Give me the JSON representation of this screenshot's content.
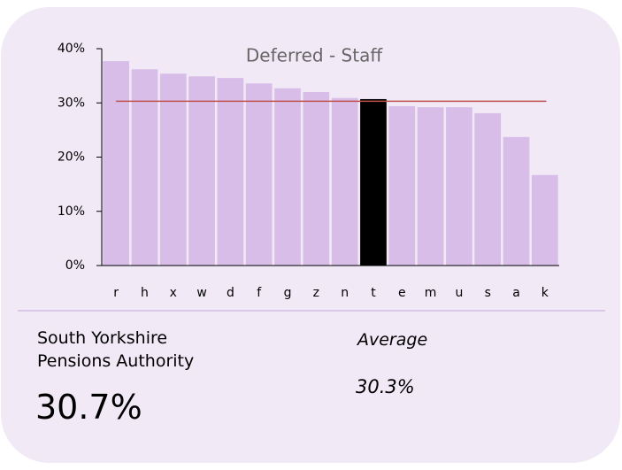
{
  "chart_data": {
    "type": "bar",
    "title": "Deferred - Staff",
    "categories": [
      "r",
      "h",
      "x",
      "w",
      "d",
      "f",
      "g",
      "z",
      "n",
      "t",
      "e",
      "m",
      "u",
      "s",
      "a",
      "k"
    ],
    "values": [
      37.7,
      36.2,
      35.4,
      34.9,
      34.6,
      33.6,
      32.7,
      32.0,
      30.9,
      30.7,
      29.4,
      29.2,
      29.2,
      28.1,
      23.7,
      16.7
    ],
    "colors": [
      "#d9bde9",
      "#d9bde9",
      "#d9bde9",
      "#d9bde9",
      "#d9bde9",
      "#d9bde9",
      "#d9bde9",
      "#d9bde9",
      "#d9bde9",
      "#000000",
      "#d9bde9",
      "#d9bde9",
      "#d9bde9",
      "#d9bde9",
      "#d9bde9",
      "#d9bde9"
    ],
    "ylim": [
      0,
      40
    ],
    "yticks": [
      {
        "value": 0,
        "label": "0%"
      },
      {
        "value": 10,
        "label": "10%"
      },
      {
        "value": 20,
        "label": "20%"
      },
      {
        "value": 30,
        "label": "30%"
      },
      {
        "value": 40,
        "label": "40%"
      }
    ],
    "grid": false,
    "entity": "South Yorkshire Pensions Authority",
    "entity_value": 30.7,
    "entity_value_label": "30.7%",
    "average": {
      "label": "Average",
      "value": 30.3,
      "value_label": "30.3%",
      "color": "#c0504d"
    }
  }
}
